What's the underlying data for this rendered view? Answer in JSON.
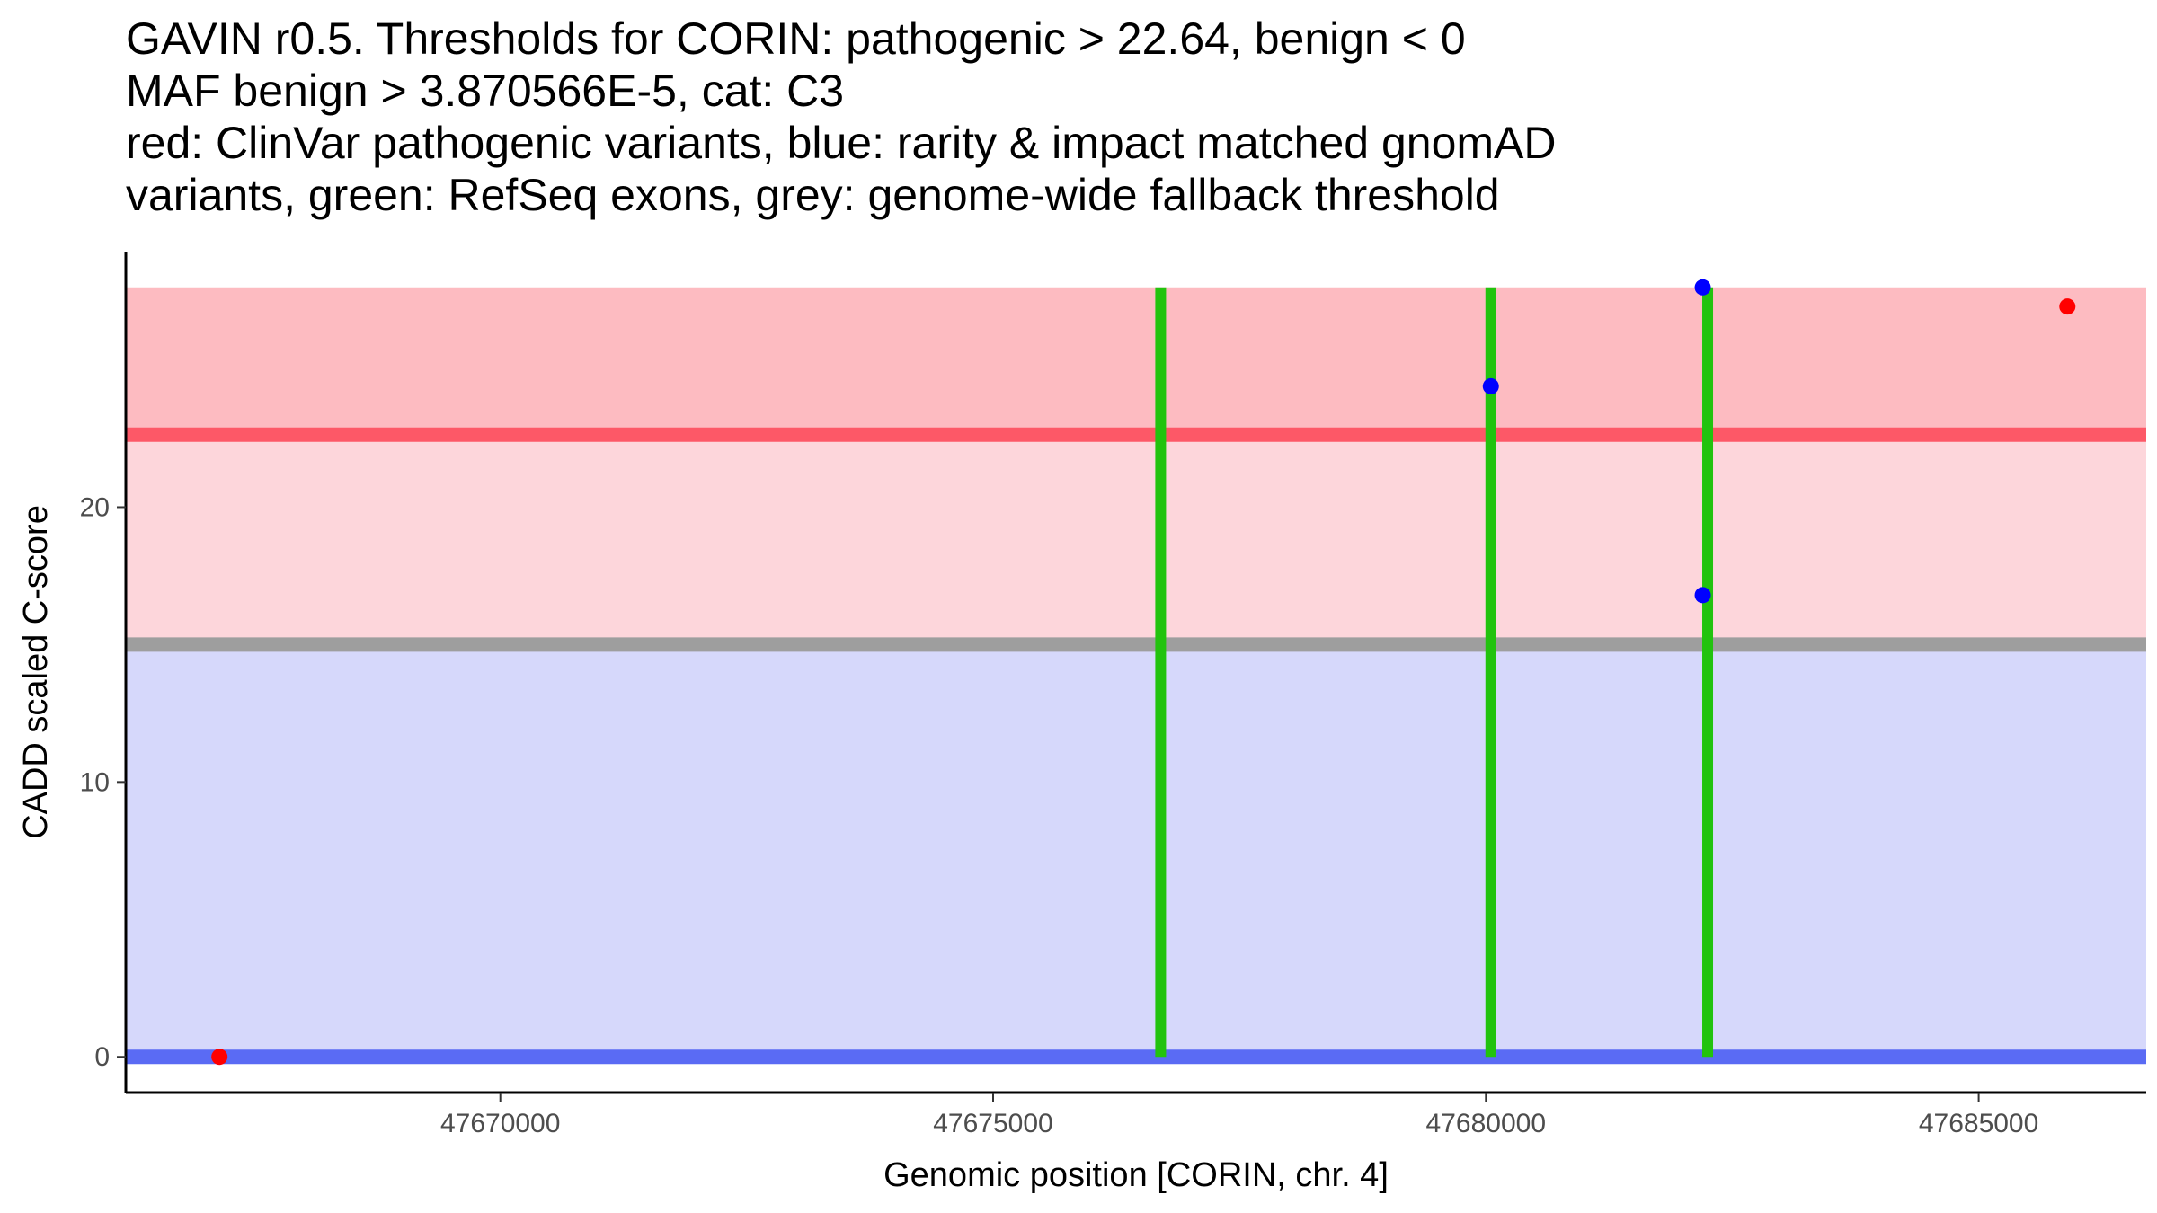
{
  "chart_data": {
    "type": "scatter",
    "title_lines": [
      "GAVIN r0.5. Thresholds for CORIN: pathogenic > 22.64, benign < 0",
      "MAF benign > 3.870566E-5, cat: C3",
      "red: ClinVar pathogenic variants, blue: rarity & impact matched gnomAD",
      "variants, green: RefSeq exons, grey: genome-wide fallback threshold"
    ],
    "xlabel": "Genomic position [CORIN, chr. 4]",
    "ylabel": "CADD scaled C-score",
    "xlim": [
      47666200,
      47686700
    ],
    "ylim": [
      -1.3,
      29.3
    ],
    "x_ticks": [
      {
        "value": 47670000,
        "label": "47670000"
      },
      {
        "value": 47675000,
        "label": "47675000"
      },
      {
        "value": 47680000,
        "label": "47680000"
      },
      {
        "value": 47685000,
        "label": "47685000"
      }
    ],
    "y_ticks": [
      {
        "value": 0,
        "label": "0"
      },
      {
        "value": 10,
        "label": "10"
      },
      {
        "value": 20,
        "label": "20"
      }
    ],
    "bands": [
      {
        "name": "pathogenic-band",
        "y0": 22.64,
        "y1": 28.0,
        "color": "#fdbbc1"
      },
      {
        "name": "fallback-band",
        "y0": 15.0,
        "y1": 22.64,
        "color": "#fdd6db"
      },
      {
        "name": "benign-band",
        "y0": 0.0,
        "y1": 15.0,
        "color": "#d6d8fb"
      }
    ],
    "threshold_lines": [
      {
        "name": "pathogenic-threshold",
        "y": 22.64,
        "color": "#fd5867"
      },
      {
        "name": "fallback-threshold",
        "y": 15.0,
        "color": "#9e9e9e"
      },
      {
        "name": "benign-threshold",
        "y": 0.0,
        "color": "#5a6bf4"
      }
    ],
    "exons": [
      {
        "x": 47676700,
        "y0": 0,
        "y1": 28.0
      },
      {
        "x": 47680050,
        "y0": 0,
        "y1": 28.0
      },
      {
        "x": 47682250,
        "y0": 0,
        "y1": 28.0
      }
    ],
    "exon_color": "#22c30e",
    "series": [
      {
        "name": "ClinVar pathogenic variants",
        "color": "#ff0000",
        "points": [
          {
            "x": 47667150,
            "y": 0.0
          },
          {
            "x": 47685900,
            "y": 27.3
          }
        ]
      },
      {
        "name": "gnomAD matched variants",
        "color": "#0000ff",
        "points": [
          {
            "x": 47680050,
            "y": 24.4
          },
          {
            "x": 47682200,
            "y": 28.0
          },
          {
            "x": 47682200,
            "y": 16.8
          }
        ]
      }
    ]
  }
}
